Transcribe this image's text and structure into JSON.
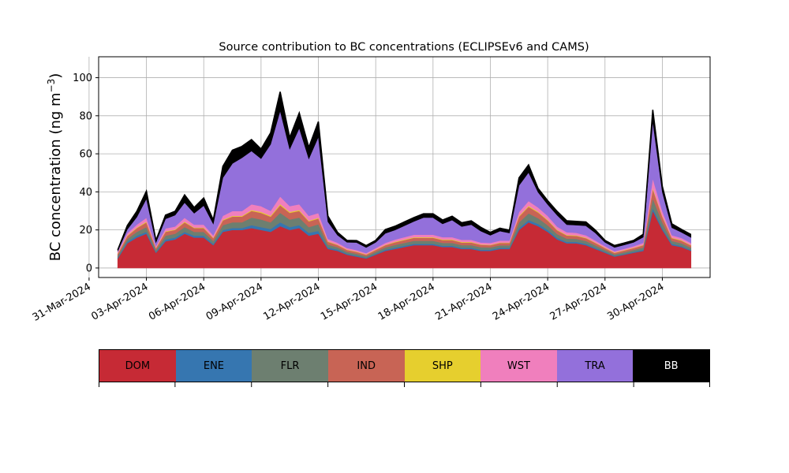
{
  "chart_data": {
    "type": "area",
    "stacked": true,
    "title": "Source contribution to BC concentrations (ECLIPSEv6 and CAMS)",
    "ylabel": "BC concentration (ng m⁻³)",
    "ylabel_main": "BC concentration (ng m",
    "ylabel_sup": "−3",
    "ylabel_close": ")",
    "xlabel": "",
    "ylim": [
      -5,
      111
    ],
    "yticks": [
      0,
      20,
      40,
      60,
      80,
      100
    ],
    "xlim": [
      "2024-03-31T12:00",
      "2024-05-02T12:00"
    ],
    "xticks": [
      "2024-03-31",
      "2024-04-03",
      "2024-04-06",
      "2024-04-09",
      "2024-04-12",
      "2024-04-15",
      "2024-04-18",
      "2024-04-21",
      "2024-04-24",
      "2024-04-27",
      "2024-04-30"
    ],
    "xtick_labels": [
      "31-Mar-2024",
      "03-Apr-2024",
      "06-Apr-2024",
      "09-Apr-2024",
      "12-Apr-2024",
      "15-Apr-2024",
      "18-Apr-2024",
      "21-Apr-2024",
      "24-Apr-2024",
      "27-Apr-2024",
      "30-Apr-2024"
    ],
    "grid": true,
    "legend_position": "below",
    "x": [
      "2024-04-01T12:00",
      "2024-04-02T00:00",
      "2024-04-02T12:00",
      "2024-04-03T00:00",
      "2024-04-03T12:00",
      "2024-04-04T00:00",
      "2024-04-04T12:00",
      "2024-04-05T00:00",
      "2024-04-05T12:00",
      "2024-04-06T00:00",
      "2024-04-06T12:00",
      "2024-04-07T00:00",
      "2024-04-07T12:00",
      "2024-04-08T00:00",
      "2024-04-08T12:00",
      "2024-04-09T00:00",
      "2024-04-09T12:00",
      "2024-04-10T00:00",
      "2024-04-10T12:00",
      "2024-04-11T00:00",
      "2024-04-11T12:00",
      "2024-04-12T00:00",
      "2024-04-12T12:00",
      "2024-04-13T00:00",
      "2024-04-13T12:00",
      "2024-04-14T00:00",
      "2024-04-14T12:00",
      "2024-04-15T00:00",
      "2024-04-15T12:00",
      "2024-04-16T00:00",
      "2024-04-16T12:00",
      "2024-04-17T00:00",
      "2024-04-17T12:00",
      "2024-04-18T00:00",
      "2024-04-18T12:00",
      "2024-04-19T00:00",
      "2024-04-19T12:00",
      "2024-04-20T00:00",
      "2024-04-20T12:00",
      "2024-04-21T00:00",
      "2024-04-21T12:00",
      "2024-04-22T00:00",
      "2024-04-22T12:00",
      "2024-04-23T00:00",
      "2024-04-23T12:00",
      "2024-04-24T00:00",
      "2024-04-24T12:00",
      "2024-04-25T00:00",
      "2024-04-25T12:00",
      "2024-04-26T00:00",
      "2024-04-26T12:00",
      "2024-04-27T00:00",
      "2024-04-27T12:00",
      "2024-04-28T00:00",
      "2024-04-28T12:00",
      "2024-04-29T00:00",
      "2024-04-29T12:00",
      "2024-04-30T00:00",
      "2024-04-30T12:00",
      "2024-05-01T00:00",
      "2024-05-01T12:00"
    ],
    "series": [
      {
        "name": "DOM",
        "color": "#c62a35",
        "values": [
          5,
          13,
          16,
          18,
          8,
          14,
          15,
          18,
          16,
          16,
          12,
          19,
          20,
          20,
          21,
          20,
          19,
          22,
          20,
          21,
          17,
          18,
          10,
          9,
          7,
          6,
          5,
          7,
          9,
          10,
          11,
          12,
          12,
          12,
          11,
          11,
          10,
          10,
          9,
          9,
          10,
          10,
          20,
          24,
          22,
          19,
          15,
          13,
          13,
          12,
          10,
          8,
          6,
          7,
          8,
          9,
          30,
          20,
          12,
          11,
          9
        ]
      },
      {
        "name": "ENE",
        "color": "#3676b0",
        "values": [
          0.5,
          0.8,
          1,
          1,
          0.5,
          1,
          1,
          1,
          1,
          1,
          0.7,
          1,
          1,
          1,
          1.5,
          1.5,
          1.5,
          2,
          1.5,
          1.5,
          1.5,
          1.5,
          0.8,
          0.7,
          0.5,
          0.5,
          0.4,
          0.5,
          0.6,
          0.7,
          0.7,
          0.7,
          0.7,
          0.7,
          0.7,
          0.7,
          0.6,
          0.6,
          0.6,
          0.6,
          0.6,
          0.6,
          1,
          1.2,
          1.2,
          1,
          0.8,
          0.7,
          0.7,
          0.7,
          0.6,
          0.5,
          0.4,
          0.4,
          0.5,
          0.6,
          1.5,
          1,
          0.7,
          0.6,
          0.5
        ]
      },
      {
        "name": "FLR",
        "color": "#6d7f70",
        "values": [
          1,
          1.5,
          2,
          2.5,
          1,
          2,
          2,
          2.5,
          2,
          2,
          1.5,
          2.5,
          3,
          3,
          4,
          4,
          3.5,
          5,
          4,
          4,
          3,
          3.5,
          1.5,
          1.2,
          1,
          1,
          0.8,
          1,
          1.2,
          1.4,
          1.5,
          1.6,
          1.6,
          1.6,
          1.5,
          1.5,
          1.4,
          1.4,
          1.3,
          1.2,
          1.3,
          1.3,
          3,
          3.5,
          3,
          2.5,
          2,
          1.7,
          1.6,
          1.5,
          1.3,
          1,
          0.8,
          0.9,
          1,
          1.2,
          5,
          3,
          1.5,
          1.4,
          1.2
        ]
      },
      {
        "name": "IND",
        "color": "#c86455",
        "values": [
          1,
          1.5,
          2,
          2.5,
          1,
          2,
          2,
          2.5,
          2,
          2,
          1.5,
          2.5,
          3,
          3,
          3.5,
          3.5,
          3,
          4,
          3.5,
          3.5,
          3,
          3,
          1.5,
          1.2,
          1,
          1,
          0.8,
          1,
          1.2,
          1.4,
          1.5,
          1.6,
          1.6,
          1.6,
          1.5,
          1.5,
          1.4,
          1.4,
          1.3,
          1.2,
          1.3,
          1.3,
          3,
          3.5,
          3,
          2.5,
          2,
          1.7,
          1.6,
          1.5,
          1.3,
          1,
          0.8,
          0.9,
          1,
          1.2,
          5,
          3,
          1.5,
          1.4,
          1.2
        ]
      },
      {
        "name": "SHP",
        "color": "#e6cf2e",
        "values": [
          0.2,
          0.3,
          0.3,
          0.4,
          0.2,
          0.3,
          0.3,
          0.4,
          0.3,
          0.3,
          0.3,
          0.4,
          0.4,
          0.4,
          0.5,
          0.5,
          0.5,
          0.6,
          0.5,
          0.5,
          0.4,
          0.4,
          0.3,
          0.2,
          0.2,
          0.2,
          0.2,
          0.2,
          0.2,
          0.3,
          0.3,
          0.3,
          0.3,
          0.3,
          0.3,
          0.3,
          0.3,
          0.3,
          0.2,
          0.2,
          0.2,
          0.2,
          0.4,
          0.5,
          0.4,
          0.4,
          0.3,
          0.3,
          0.3,
          0.3,
          0.2,
          0.2,
          0.2,
          0.2,
          0.2,
          0.2,
          0.6,
          0.4,
          0.3,
          0.3,
          0.2
        ]
      },
      {
        "name": "WST",
        "color": "#f07fbd",
        "values": [
          0.8,
          1.2,
          1.5,
          2,
          0.8,
          1.5,
          1.5,
          2,
          1.5,
          1.5,
          1.2,
          2,
          2.5,
          2.5,
          3,
          3,
          2.5,
          4,
          3,
          3,
          2.5,
          2.5,
          1.2,
          1,
          0.8,
          0.7,
          0.6,
          0.8,
          1,
          1.1,
          1.2,
          1.3,
          1.3,
          1.3,
          1.2,
          1.2,
          1.1,
          1.1,
          1,
          1,
          1,
          1,
          2,
          2.5,
          2.2,
          2,
          1.6,
          1.4,
          1.3,
          1.2,
          1,
          0.8,
          0.6,
          0.7,
          0.8,
          1,
          5,
          2.5,
          1.2,
          1.1,
          1
        ]
      },
      {
        "name": "TRA",
        "color": "#9370db",
        "values": [
          0.5,
          2,
          4,
          10,
          2,
          5,
          6,
          8,
          6,
          10,
          6,
          20,
          25,
          28,
          28,
          25,
          35,
          45,
          30,
          40,
          30,
          40,
          9,
          4,
          3,
          4,
          3,
          3,
          5,
          5,
          6,
          7,
          9,
          9,
          7,
          9,
          7,
          8,
          6,
          4,
          5,
          4,
          14,
          15,
          8,
          6,
          6,
          4,
          4,
          5,
          4,
          2,
          2,
          2,
          2,
          3,
          30,
          10,
          4,
          3,
          3
        ]
      },
      {
        "name": "BB",
        "color": "#000000",
        "values": [
          0.5,
          2,
          3,
          4,
          1,
          2,
          2,
          4,
          3,
          4,
          2,
          6,
          7,
          6,
          6,
          5,
          6,
          10,
          6,
          8,
          6,
          8,
          3,
          1.5,
          1,
          1,
          1,
          1,
          2,
          2,
          2,
          2,
          2,
          2,
          2,
          2,
          2,
          2,
          2,
          1.5,
          1.5,
          1.5,
          4,
          4,
          2,
          2,
          2,
          2,
          2,
          2,
          1.5,
          1,
          1,
          1,
          1,
          1.5,
          6,
          3,
          2,
          1.5,
          1.5
        ]
      }
    ]
  }
}
